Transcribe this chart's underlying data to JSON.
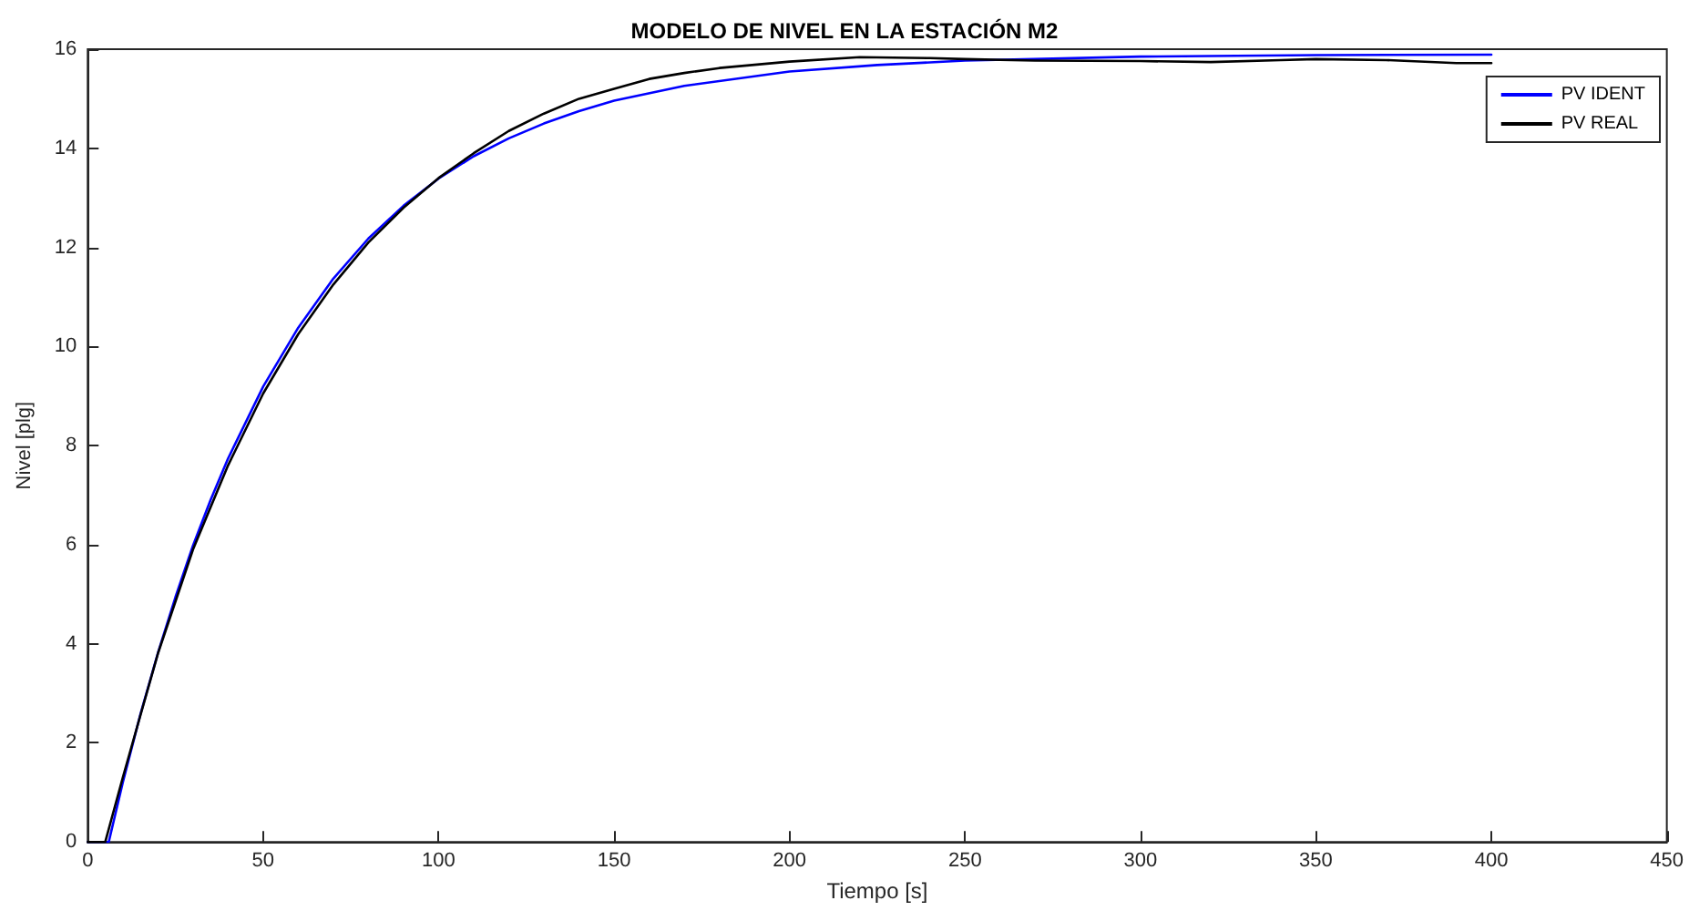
{
  "chart_data": {
    "type": "line",
    "title": "MODELO DE NIVEL EN LA ESTACIÓN M2",
    "xlabel": "Tiempo [s]",
    "ylabel": "Nivel [plg]",
    "xlim": [
      0,
      450
    ],
    "xticks": [
      0,
      50,
      100,
      150,
      200,
      250,
      300,
      350,
      400,
      450
    ],
    "ylim": [
      0,
      16
    ],
    "yticks": [
      0,
      2,
      4,
      6,
      8,
      10,
      12,
      14,
      16
    ],
    "grid": false,
    "legend": "top right",
    "marker": "none",
    "line_style": "solid",
    "series": [
      {
        "name": "PV IDENT",
        "color": "#0000ff",
        "x": [
          0,
          6,
          10,
          15,
          20,
          25,
          30,
          35,
          40,
          50,
          60,
          70,
          80,
          90,
          100,
          110,
          120,
          130,
          140,
          150,
          170,
          200,
          225,
          250,
          300,
          350,
          400
        ],
        "values": [
          0,
          0,
          1.2,
          2.57,
          3.81,
          4.94,
          5.98,
          6.9,
          7.74,
          9.19,
          10.38,
          11.37,
          12.18,
          12.84,
          13.39,
          13.84,
          14.2,
          14.5,
          14.75,
          14.96,
          15.26,
          15.55,
          15.68,
          15.77,
          15.85,
          15.88,
          15.89
        ]
      },
      {
        "name": "PV REAL",
        "color": "#000000",
        "x": [
          0,
          5,
          10,
          20,
          30,
          40,
          50,
          60,
          70,
          80,
          90,
          100,
          110,
          120,
          130,
          140,
          150,
          160,
          170,
          180,
          200,
          220,
          240,
          250,
          270,
          300,
          320,
          340,
          350,
          370,
          390,
          400
        ],
        "values": [
          0,
          0,
          1.3,
          3.8,
          5.9,
          7.6,
          9.05,
          10.25,
          11.25,
          12.1,
          12.8,
          13.4,
          13.9,
          14.35,
          14.7,
          15,
          15.2,
          15.4,
          15.52,
          15.62,
          15.75,
          15.84,
          15.82,
          15.8,
          15.77,
          15.76,
          15.74,
          15.78,
          15.8,
          15.78,
          15.72,
          15.72
        ]
      }
    ]
  }
}
